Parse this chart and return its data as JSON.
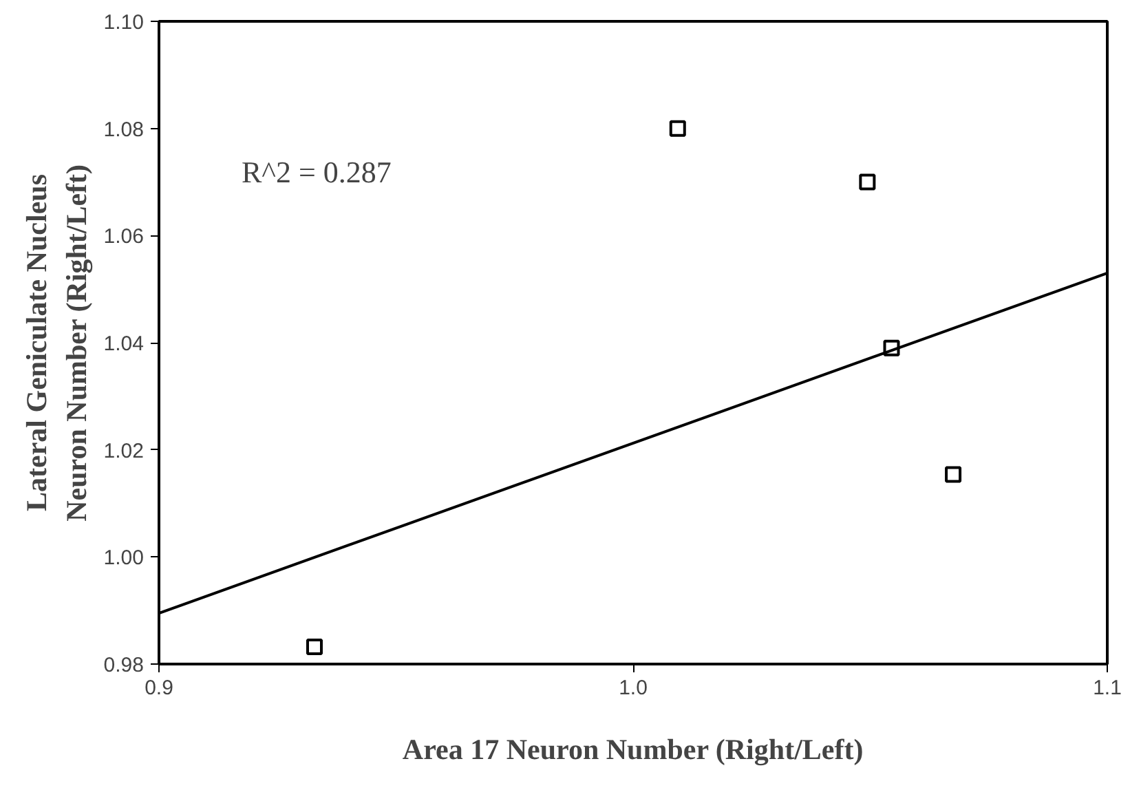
{
  "chart_data": {
    "type": "scatter",
    "xlabel": "Area 17 Neuron Number (Right/Left)",
    "ylabel": "Lateral Geniculate Nucleus\nNeuron Number (Right/Left)",
    "xlim": [
      0.9,
      1.1
    ],
    "xticks": [
      {
        "value": 0.9,
        "label": "0.9"
      },
      {
        "value": 1.0,
        "label": "1.0"
      },
      {
        "value": 1.1,
        "label": "1.1"
      }
    ],
    "ylim": [
      0.98,
      1.1
    ],
    "yticks": [
      {
        "value": 0.98,
        "label": "0.98"
      },
      {
        "value": 1.0,
        "label": "1.00"
      },
      {
        "value": 1.02,
        "label": "1.02"
      },
      {
        "value": 1.04,
        "label": "1.04"
      },
      {
        "value": 1.06,
        "label": "1.06"
      },
      {
        "value": 1.08,
        "label": "1.08"
      },
      {
        "value": 1.1,
        "label": "1.10"
      }
    ],
    "series": [
      {
        "marker": "square",
        "color": "#000000",
        "x": [
          0.9328,
          1.0094,
          1.0494,
          1.0545,
          1.0675
        ],
        "values": [
          0.9832,
          1.08,
          1.07,
          1.039,
          1.0154
        ]
      },
      {
        "type": "line",
        "color": "#000000",
        "x": [
          0.9,
          1.1
        ],
        "values": [
          0.9895,
          1.053
        ]
      }
    ],
    "annotations": [
      "R^2 = 0.287"
    ],
    "grid": false
  }
}
